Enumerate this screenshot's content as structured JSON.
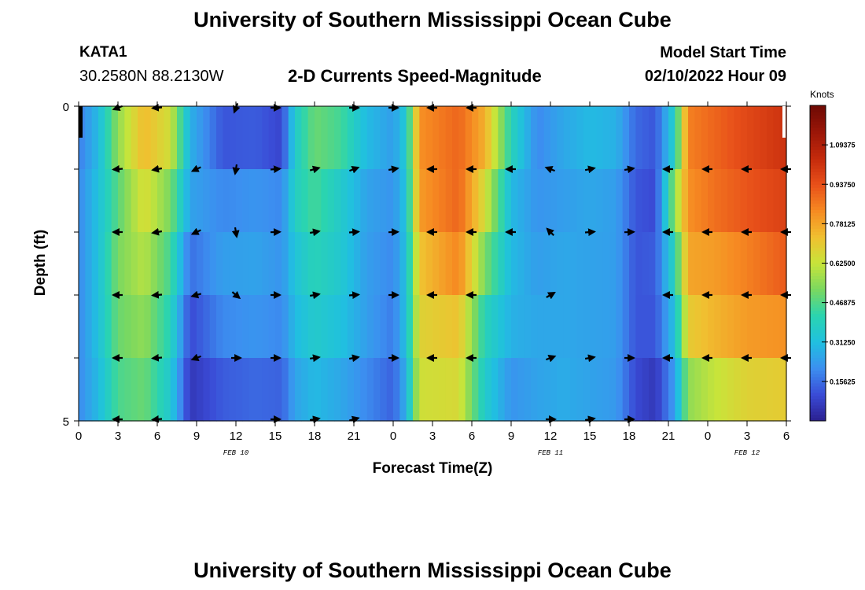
{
  "header": {
    "title": "University of Southern Mississippi Ocean Cube",
    "station": "KATA1",
    "coordinates": "30.2580N  88.2130W",
    "subtitle": "2-D Currents Speed-Magnitude",
    "model_start_label": "Model Start Time",
    "model_start_value": "02/10/2022 Hour 09"
  },
  "footer": {
    "title": "University of Southern Mississippi Ocean Cube"
  },
  "chart_data": {
    "type": "heatmap",
    "title": "2-D Currents Speed-Magnitude",
    "xlabel": "Forecast Time(Z)",
    "ylabel": "Depth (ft)",
    "ylim": [
      0,
      5
    ],
    "y_tick_labels": [
      "0",
      "5"
    ],
    "x_tick_labels": [
      "0",
      "3",
      "6",
      "9",
      "12",
      "15",
      "18",
      "21",
      "0",
      "3",
      "6",
      "9",
      "12",
      "15",
      "18",
      "21",
      "0",
      "3",
      "6"
    ],
    "date_labels": [
      {
        "label": "FEB 10",
        "hour_index": 12
      },
      {
        "label": "FEB 11",
        "hour_index": 36
      },
      {
        "label": "FEB 12",
        "hour_index": 51
      }
    ],
    "x_range_hours": [
      0,
      54
    ],
    "depth_rows": 5,
    "colorbar": {
      "title": "Knots",
      "min": 0.0,
      "max": 1.25,
      "tick_labels": [
        "0.15625",
        "0.31250",
        "0.46875",
        "0.62500",
        "0.78125",
        "0.93750",
        "1.09375"
      ],
      "colors": [
        "#2a1f8e",
        "#3a4bd6",
        "#3c8ff0",
        "#20c0e0",
        "#2ad4b0",
        "#7ad860",
        "#c8e43a",
        "#f0c030",
        "#f68a22",
        "#e8501a",
        "#c42a0c",
        "#9a1608",
        "#6e0a04"
      ]
    },
    "speed_keypoints": [
      {
        "hour": 0,
        "rows": [
          0.18,
          0.2,
          0.2,
          0.2,
          0.2
        ]
      },
      {
        "hour": 1.5,
        "rows": [
          0.3,
          0.32,
          0.32,
          0.32,
          0.3
        ]
      },
      {
        "hour": 3,
        "rows": [
          0.55,
          0.48,
          0.52,
          0.5,
          0.46
        ]
      },
      {
        "hour": 5,
        "rows": [
          0.74,
          0.66,
          0.6,
          0.55,
          0.5
        ]
      },
      {
        "hour": 7,
        "rows": [
          0.64,
          0.52,
          0.45,
          0.4,
          0.35
        ]
      },
      {
        "hour": 8.5,
        "rows": [
          0.28,
          0.25,
          0.16,
          0.1,
          0.06
        ]
      },
      {
        "hour": 11,
        "rows": [
          0.12,
          0.2,
          0.24,
          0.2,
          0.13
        ]
      },
      {
        "hour": 13.5,
        "rows": [
          0.13,
          0.22,
          0.25,
          0.22,
          0.15
        ]
      },
      {
        "hour": 15.5,
        "rows": [
          0.09,
          0.2,
          0.22,
          0.2,
          0.14
        ]
      },
      {
        "hour": 16.5,
        "rows": [
          0.36,
          0.38,
          0.33,
          0.3,
          0.25
        ]
      },
      {
        "hour": 18,
        "rows": [
          0.5,
          0.45,
          0.4,
          0.36,
          0.3
        ]
      },
      {
        "hour": 20,
        "rows": [
          0.45,
          0.36,
          0.35,
          0.32,
          0.26
        ]
      },
      {
        "hour": 22,
        "rows": [
          0.3,
          0.25,
          0.24,
          0.24,
          0.2
        ]
      },
      {
        "hour": 24,
        "rows": [
          0.24,
          0.22,
          0.2,
          0.18,
          0.14
        ]
      },
      {
        "hour": 25,
        "rows": [
          0.35,
          0.33,
          0.32,
          0.32,
          0.28
        ]
      },
      {
        "hour": 26,
        "rows": [
          0.82,
          0.8,
          0.72,
          0.68,
          0.64
        ]
      },
      {
        "hour": 29,
        "rows": [
          0.9,
          0.9,
          0.84,
          0.72,
          0.66
        ]
      },
      {
        "hour": 31,
        "rows": [
          0.76,
          0.65,
          0.52,
          0.4,
          0.36
        ]
      },
      {
        "hour": 33,
        "rows": [
          0.4,
          0.3,
          0.3,
          0.28,
          0.22
        ]
      },
      {
        "hour": 35,
        "rows": [
          0.2,
          0.22,
          0.24,
          0.26,
          0.25
        ]
      },
      {
        "hour": 37,
        "rows": [
          0.26,
          0.24,
          0.26,
          0.26,
          0.27
        ]
      },
      {
        "hour": 39,
        "rows": [
          0.3,
          0.26,
          0.25,
          0.25,
          0.25
        ]
      },
      {
        "hour": 41,
        "rows": [
          0.28,
          0.24,
          0.24,
          0.24,
          0.23
        ]
      },
      {
        "hour": 42.5,
        "rows": [
          0.15,
          0.12,
          0.12,
          0.12,
          0.1
        ]
      },
      {
        "hour": 44,
        "rows": [
          0.12,
          0.1,
          0.13,
          0.12,
          0.06
        ]
      },
      {
        "hour": 45.5,
        "rows": [
          0.38,
          0.55,
          0.4,
          0.32,
          0.24
        ]
      },
      {
        "hour": 46.5,
        "rows": [
          0.85,
          0.82,
          0.78,
          0.7,
          0.55
        ]
      },
      {
        "hour": 48.5,
        "rows": [
          0.9,
          0.88,
          0.8,
          0.75,
          0.62
        ]
      },
      {
        "hour": 51,
        "rows": [
          0.96,
          0.93,
          0.85,
          0.8,
          0.68
        ]
      },
      {
        "hour": 54,
        "rows": [
          1.02,
          0.98,
          0.92,
          0.82,
          0.7
        ]
      }
    ],
    "arrows": {
      "hours": [
        0,
        3,
        6,
        9,
        12,
        15,
        18,
        21,
        24,
        27,
        30,
        33,
        36,
        39,
        42,
        45,
        48,
        51,
        54
      ],
      "directions_deg": [
        [
          null,
          200,
          185,
          null,
          250,
          0,
          null,
          0,
          0,
          180,
          180,
          null,
          null,
          null,
          null,
          null,
          null,
          null,
          null
        ],
        [
          null,
          185,
          190,
          205,
          260,
          5,
          15,
          20,
          10,
          180,
          180,
          180,
          160,
          12,
          10,
          180,
          180,
          180,
          180
        ],
        [
          null,
          180,
          190,
          205,
          280,
          2,
          10,
          5,
          2,
          180,
          180,
          180,
          135,
          5,
          2,
          180,
          180,
          180,
          180
        ],
        [
          null,
          180,
          185,
          195,
          320,
          0,
          10,
          5,
          0,
          180,
          180,
          null,
          30,
          null,
          null,
          180,
          180,
          180,
          180
        ],
        [
          null,
          180,
          185,
          200,
          0,
          0,
          8,
          10,
          0,
          180,
          180,
          null,
          20,
          10,
          0,
          180,
          180,
          180,
          180
        ],
        [
          null,
          180,
          185,
          null,
          null,
          0,
          10,
          15,
          null,
          null,
          null,
          null,
          0,
          10,
          0,
          null,
          null,
          null,
          null
        ]
      ]
    }
  }
}
